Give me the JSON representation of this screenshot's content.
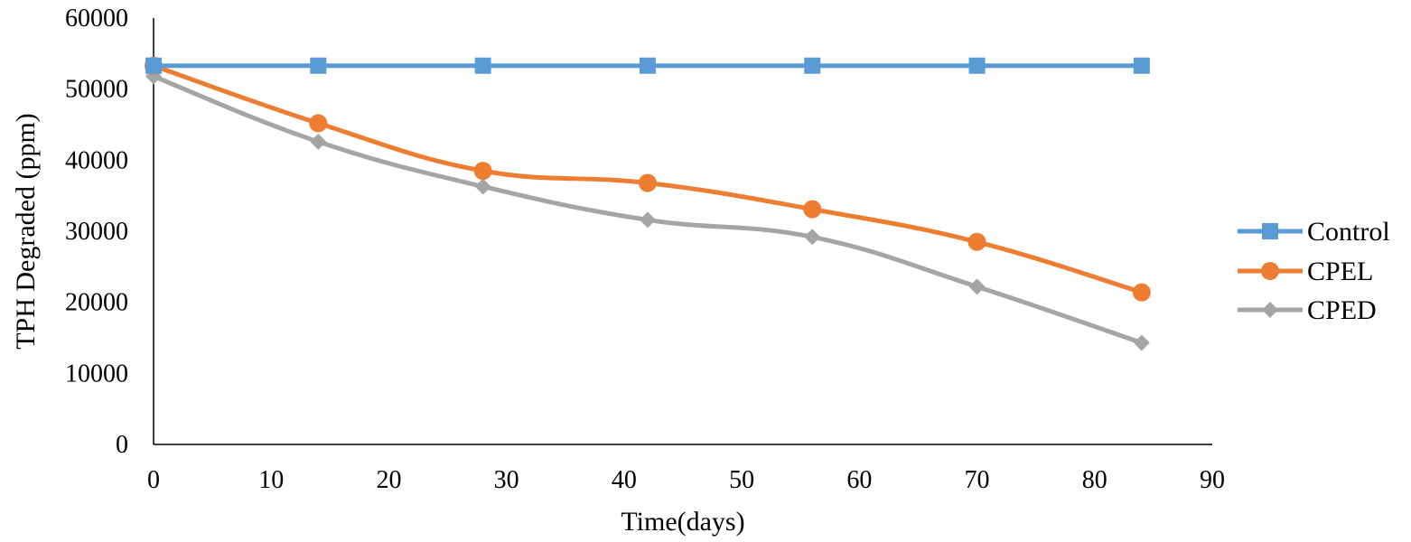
{
  "chart_data": {
    "type": "line",
    "title": "",
    "xlabel": "Time(days)",
    "ylabel": "TPH Degraded (ppm)",
    "xlim": [
      0,
      90
    ],
    "ylim": [
      0,
      60000
    ],
    "x_ticks": [
      0,
      10,
      20,
      30,
      40,
      50,
      60,
      70,
      80,
      90
    ],
    "y_ticks": [
      0,
      10000,
      20000,
      30000,
      40000,
      50000,
      60000
    ],
    "x_tick_labels": [
      "0",
      "10",
      "20",
      "30",
      "40",
      "50",
      "60",
      "70",
      "80",
      "90"
    ],
    "y_tick_labels": [
      "0",
      "10000",
      "20000",
      "30000",
      "40000",
      "50000",
      "60000"
    ],
    "grid": false,
    "legend_position": "right",
    "x": [
      0,
      14,
      28,
      42,
      56,
      70,
      84
    ],
    "series": [
      {
        "name": "Control",
        "values": [
          53300,
          53300,
          53300,
          53300,
          53300,
          53300,
          53300
        ],
        "color": "#5B9BD5",
        "marker": "square",
        "smooth": false
      },
      {
        "name": "CPEL",
        "values": [
          53300,
          45200,
          38500,
          36800,
          33100,
          28500,
          21400
        ],
        "color": "#ED7D31",
        "marker": "circle",
        "smooth": true
      },
      {
        "name": "CPED",
        "values": [
          51800,
          42600,
          36300,
          31600,
          29200,
          22200,
          14300
        ],
        "color": "#A5A5A5",
        "marker": "diamond",
        "smooth": true
      }
    ]
  }
}
